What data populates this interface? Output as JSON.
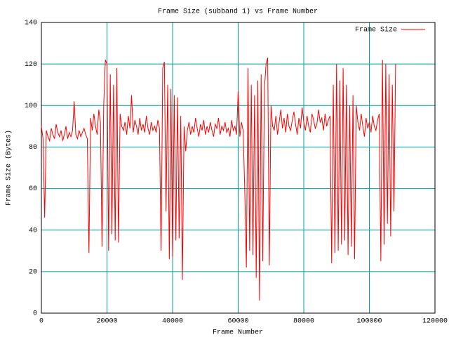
{
  "chart_data": {
    "type": "line",
    "title": "Frame Size (subband 1) vs Frame Number",
    "xlabel": "Frame Number",
    "ylabel": "Frame Size (Bytes)",
    "xlim": [
      0,
      120000
    ],
    "xticks": [
      0,
      20000,
      40000,
      60000,
      80000,
      100000,
      120000
    ],
    "ylim": [
      0,
      140
    ],
    "yticks": [
      0,
      20,
      40,
      60,
      80,
      100,
      120,
      140
    ],
    "grid": true,
    "grid_color": "#00a0a0",
    "legend": "top-right",
    "x": [
      0,
      500,
      1000,
      1500,
      2000,
      2500,
      3000,
      3500,
      4000,
      4500,
      5000,
      5500,
      6000,
      6500,
      7000,
      7500,
      8000,
      8500,
      9000,
      9500,
      10000,
      10500,
      11000,
      11500,
      12000,
      12500,
      13000,
      13500,
      14000,
      14500,
      15000,
      15500,
      16000,
      16500,
      17000,
      17500,
      18000,
      18500,
      19000,
      19500,
      20000,
      20500,
      21000,
      21500,
      22000,
      22500,
      23000,
      23500,
      24000,
      24500,
      25000,
      25500,
      26000,
      26500,
      27000,
      27500,
      28000,
      28500,
      29000,
      29500,
      30000,
      30500,
      31000,
      31500,
      32000,
      32500,
      33000,
      33500,
      34000,
      34500,
      35000,
      35500,
      36000,
      36500,
      37000,
      37500,
      38000,
      38500,
      39000,
      39500,
      40000,
      40500,
      41000,
      41500,
      42000,
      42500,
      43000,
      43500,
      44000,
      44500,
      45000,
      45500,
      46000,
      46500,
      47000,
      47500,
      48000,
      48500,
      49000,
      49500,
      50000,
      50500,
      51000,
      51500,
      52000,
      52500,
      53000,
      53500,
      54000,
      54500,
      55000,
      55500,
      56000,
      56500,
      57000,
      57500,
      58000,
      58500,
      59000,
      59500,
      60000,
      60500,
      61000,
      61500,
      62000,
      62500,
      63000,
      63500,
      64000,
      64500,
      65000,
      65500,
      66000,
      66500,
      67000,
      67500,
      68000,
      68500,
      69000,
      69500,
      70000,
      70500,
      71000,
      71500,
      72000,
      72500,
      73000,
      73500,
      74000,
      74500,
      75000,
      75500,
      76000,
      76500,
      77000,
      77500,
      78000,
      78500,
      79000,
      79500,
      80000,
      80500,
      81000,
      81500,
      82000,
      82500,
      83000,
      83500,
      84000,
      84500,
      85000,
      85500,
      86000,
      86500,
      87000,
      87500,
      88000,
      88500,
      89000,
      89500,
      90000,
      90500,
      91000,
      91500,
      92000,
      92500,
      93000,
      93500,
      94000,
      94500,
      95000,
      95500,
      96000,
      96500,
      97000,
      97500,
      98000,
      98500,
      99000,
      99500,
      100000,
      100500,
      101000,
      101500,
      102000,
      102500,
      103000,
      103500,
      104000,
      104500,
      105000,
      105500,
      106000,
      106500,
      107000,
      107500,
      108000
    ],
    "series": [
      {
        "name": "Frame Size",
        "color": "#ff0000",
        "values": [
          90,
          84,
          46,
          88,
          85,
          83,
          89,
          86,
          84,
          91,
          87,
          85,
          88,
          83,
          86,
          90,
          84,
          87,
          85,
          88,
          102,
          86,
          84,
          88,
          85,
          87,
          89,
          86,
          84,
          29,
          94,
          88,
          96,
          90,
          86,
          98,
          92,
          32,
          100,
          122,
          120,
          30,
          115,
          38,
          110,
          35,
          118,
          34,
          96,
          90,
          88,
          92,
          86,
          95,
          89,
          105,
          87,
          93,
          90,
          86,
          94,
          88,
          91,
          87,
          95,
          89,
          86,
          92,
          88,
          90,
          87,
          93,
          89,
          30,
          118,
          121,
          49,
          110,
          26,
          108,
          27,
          105,
          35,
          104,
          36,
          95,
          16,
          90,
          78,
          88,
          92,
          86,
          90,
          87,
          94,
          89,
          85,
          91,
          88,
          93,
          86,
          90,
          87,
          92,
          88,
          85,
          91,
          89,
          94,
          86,
          90,
          88,
          92,
          87,
          89,
          85,
          93,
          88,
          90,
          86,
          107,
          85,
          92,
          88,
          60,
          22,
          118,
          30,
          110,
          28,
          105,
          17,
          112,
          6,
          115,
          25,
          108,
          120,
          123,
          23,
          100,
          90,
          88,
          95,
          86,
          92,
          98,
          89,
          94,
          87,
          96,
          90,
          88,
          93,
          97,
          91,
          86,
          94,
          89,
          99,
          92,
          88,
          95,
          90,
          87,
          96,
          93,
          89,
          91,
          98,
          92,
          94,
          88,
          96,
          90,
          93,
          95,
          24,
          110,
          29,
          120,
          30,
          112,
          33,
          118,
          35,
          110,
          28,
          100,
          32,
          105,
          26,
          100,
          92,
          88,
          96,
          90,
          85,
          94,
          89,
          92,
          87,
          95,
          90,
          88,
          93,
          96,
          25,
          122,
          33,
          120,
          43,
          115,
          37,
          110,
          49,
          120
        ]
      }
    ]
  }
}
